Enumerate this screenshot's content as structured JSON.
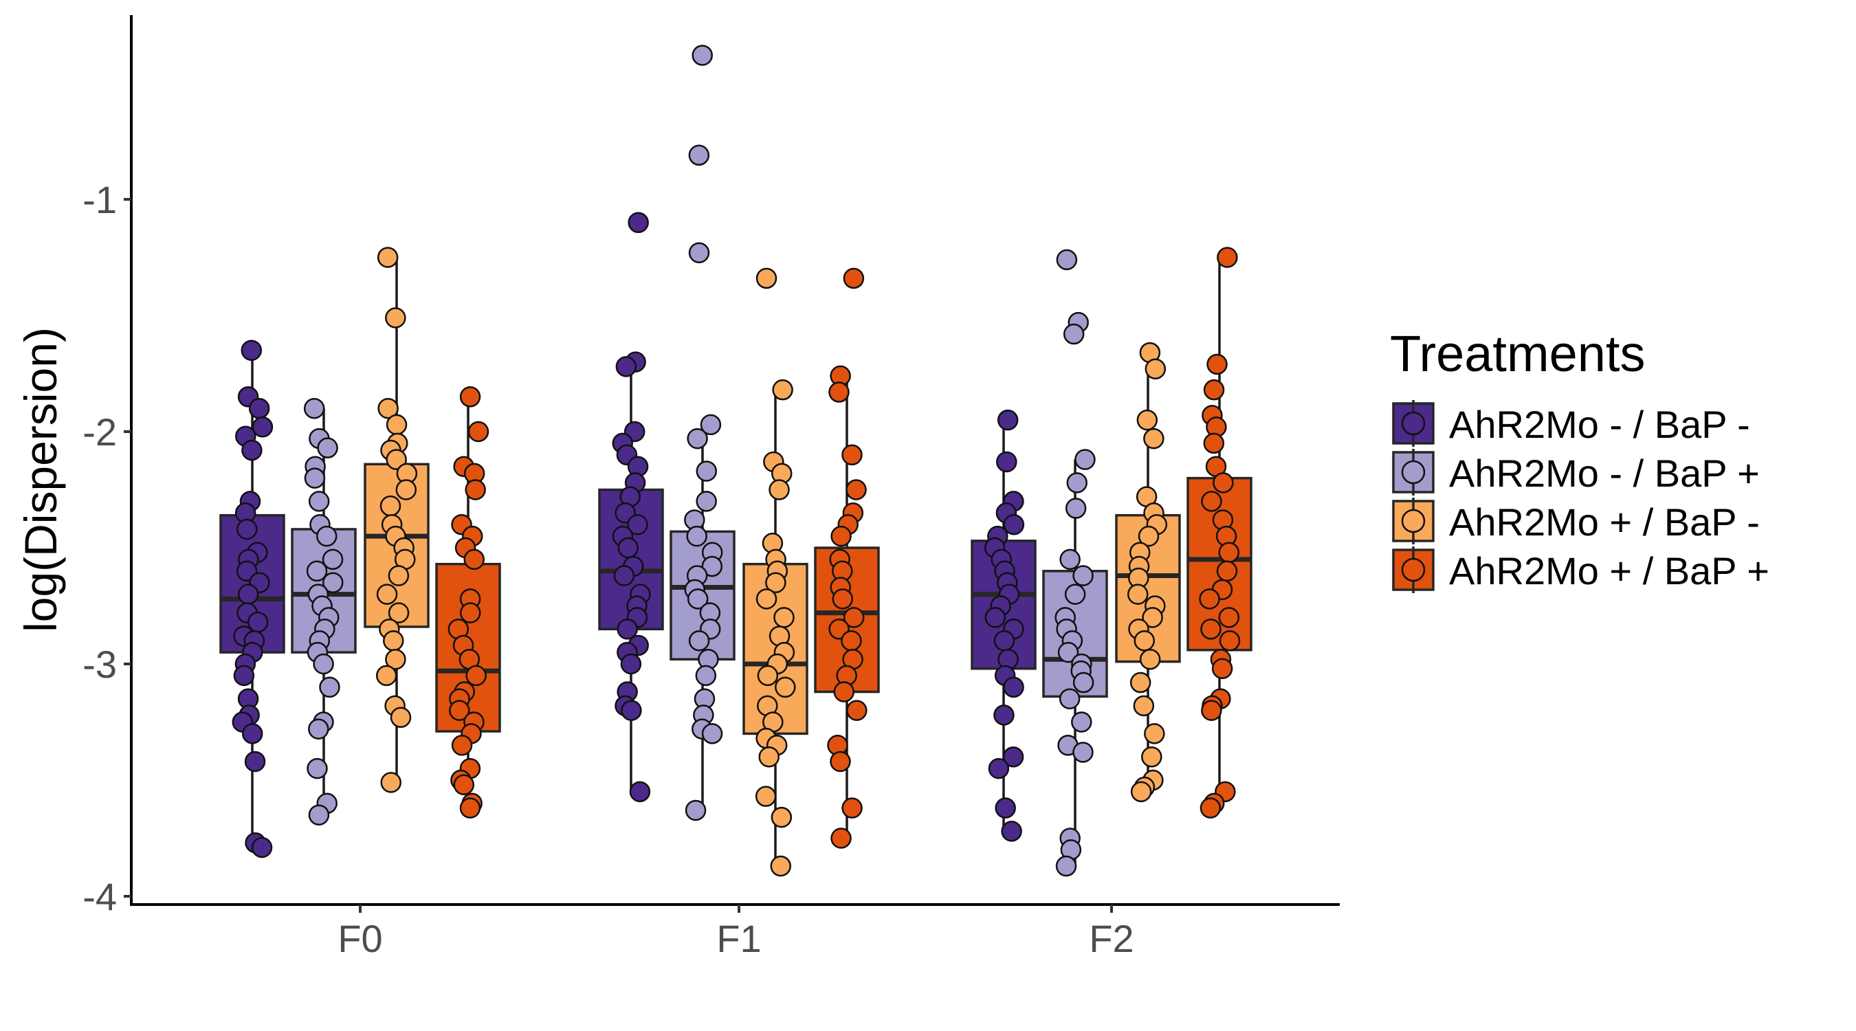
{
  "chart_data": {
    "type": "box",
    "title": "",
    "xlabel": "",
    "ylabel": "log(Dispersion)",
    "ylim": [
      -4.05,
      -0.25
    ],
    "yticks": [
      -4,
      -3,
      -2,
      -1
    ],
    "ytick_labels": [
      "-4",
      "-3",
      "-2",
      "-1"
    ],
    "categories": [
      "F0",
      "F1",
      "F2"
    ],
    "grid": false,
    "legend": {
      "title": "Treatments",
      "placement": "right"
    },
    "series": [
      {
        "name": "AhR2Mo - / BaP -",
        "color": "#4b2a8a",
        "boxes": [
          {
            "category": "F0",
            "q1": -2.95,
            "median": -2.72,
            "q3": -2.36,
            "whisker_low": -3.78,
            "whisker_high": -1.65,
            "points": [
              -1.65,
              -1.85,
              -1.9,
              -1.98,
              -2.02,
              -2.08,
              -2.3,
              -2.35,
              -2.42,
              -2.52,
              -2.55,
              -2.6,
              -2.65,
              -2.7,
              -2.78,
              -2.82,
              -2.88,
              -2.9,
              -2.95,
              -3.0,
              -3.05,
              -3.15,
              -3.22,
              -3.25,
              -3.3,
              -3.42,
              -3.77,
              -3.79
            ]
          },
          {
            "category": "F1",
            "q1": -2.85,
            "median": -2.6,
            "q3": -2.25,
            "whisker_low": -3.55,
            "whisker_high": -1.7,
            "points": [
              -1.1,
              -1.7,
              -1.72,
              -2.0,
              -2.05,
              -2.1,
              -2.15,
              -2.22,
              -2.28,
              -2.35,
              -2.4,
              -2.45,
              -2.5,
              -2.58,
              -2.62,
              -2.7,
              -2.75,
              -2.8,
              -2.85,
              -2.92,
              -2.95,
              -3.0,
              -3.12,
              -3.18,
              -3.2,
              -3.55
            ]
          },
          {
            "category": "F2",
            "q1": -3.02,
            "median": -2.7,
            "q3": -2.47,
            "whisker_low": -3.72,
            "whisker_high": -1.95,
            "points": [
              -1.95,
              -2.13,
              -2.3,
              -2.35,
              -2.4,
              -2.45,
              -2.5,
              -2.55,
              -2.6,
              -2.65,
              -2.7,
              -2.75,
              -2.8,
              -2.85,
              -2.9,
              -2.98,
              -3.05,
              -3.1,
              -3.22,
              -3.4,
              -3.45,
              -3.62,
              -3.72
            ]
          }
        ]
      },
      {
        "name": "AhR2Mo - / BaP +",
        "color": "#a29dcc",
        "boxes": [
          {
            "category": "F0",
            "q1": -2.95,
            "median": -2.7,
            "q3": -2.42,
            "whisker_low": -3.65,
            "whisker_high": -1.9,
            "points": [
              -1.9,
              -2.03,
              -2.07,
              -2.15,
              -2.2,
              -2.3,
              -2.4,
              -2.45,
              -2.55,
              -2.6,
              -2.65,
              -2.7,
              -2.75,
              -2.8,
              -2.85,
              -2.9,
              -2.95,
              -3.0,
              -3.1,
              -3.25,
              -3.28,
              -3.45,
              -3.6,
              -3.65
            ]
          },
          {
            "category": "F1",
            "q1": -2.98,
            "median": -2.67,
            "q3": -2.43,
            "whisker_low": -3.63,
            "whisker_high": -1.97,
            "points": [
              -0.38,
              -0.81,
              -1.23,
              -1.97,
              -2.03,
              -2.17,
              -2.3,
              -2.38,
              -2.45,
              -2.52,
              -2.58,
              -2.62,
              -2.68,
              -2.72,
              -2.78,
              -2.85,
              -2.9,
              -2.98,
              -3.05,
              -3.15,
              -3.22,
              -3.28,
              -3.3,
              -3.63
            ]
          },
          {
            "category": "F2",
            "q1": -3.14,
            "median": -2.98,
            "q3": -2.6,
            "whisker_low": -3.87,
            "whisker_high": -2.12,
            "points": [
              -1.26,
              -1.53,
              -1.58,
              -2.12,
              -2.22,
              -2.33,
              -2.55,
              -2.62,
              -2.7,
              -2.8,
              -2.85,
              -2.9,
              -2.95,
              -3.0,
              -3.03,
              -3.08,
              -3.15,
              -3.25,
              -3.35,
              -3.38,
              -3.75,
              -3.8,
              -3.87
            ]
          }
        ]
      },
      {
        "name": "AhR2Mo + / BaP -",
        "color": "#f9a95a",
        "boxes": [
          {
            "category": "F0",
            "q1": -2.84,
            "median": -2.45,
            "q3": -2.14,
            "whisker_low": -3.51,
            "whisker_high": -1.25,
            "points": [
              -1.25,
              -1.51,
              -1.9,
              -1.97,
              -2.05,
              -2.08,
              -2.12,
              -2.18,
              -2.25,
              -2.32,
              -2.4,
              -2.45,
              -2.5,
              -2.55,
              -2.62,
              -2.7,
              -2.78,
              -2.85,
              -2.9,
              -2.98,
              -3.05,
              -3.18,
              -3.23,
              -3.51
            ]
          },
          {
            "category": "F1",
            "q1": -3.3,
            "median": -3.0,
            "q3": -2.57,
            "whisker_low": -3.87,
            "whisker_high": -1.82,
            "points": [
              -1.34,
              -1.82,
              -2.13,
              -2.18,
              -2.25,
              -2.48,
              -2.55,
              -2.6,
              -2.65,
              -2.72,
              -2.8,
              -2.88,
              -2.95,
              -3.0,
              -3.05,
              -3.1,
              -3.18,
              -3.25,
              -3.32,
              -3.35,
              -3.4,
              -3.57,
              -3.66,
              -3.87
            ]
          },
          {
            "category": "F2",
            "q1": -2.99,
            "median": -2.62,
            "q3": -2.36,
            "whisker_low": -3.55,
            "whisker_high": -1.66,
            "points": [
              -1.66,
              -1.73,
              -1.95,
              -2.03,
              -2.28,
              -2.35,
              -2.4,
              -2.45,
              -2.52,
              -2.58,
              -2.63,
              -2.7,
              -2.75,
              -2.8,
              -2.85,
              -2.9,
              -2.98,
              -3.08,
              -3.18,
              -3.3,
              -3.4,
              -3.5,
              -3.53,
              -3.55
            ]
          }
        ]
      },
      {
        "name": "AhR2Mo + / BaP +",
        "color": "#e1520f",
        "boxes": [
          {
            "category": "F0",
            "q1": -3.29,
            "median": -3.03,
            "q3": -2.57,
            "whisker_low": -3.62,
            "whisker_high": -1.85,
            "points": [
              -1.85,
              -2.0,
              -2.15,
              -2.18,
              -2.25,
              -2.4,
              -2.45,
              -2.5,
              -2.55,
              -2.72,
              -2.78,
              -2.85,
              -2.92,
              -2.98,
              -3.05,
              -3.12,
              -3.15,
              -3.2,
              -3.25,
              -3.3,
              -3.35,
              -3.45,
              -3.5,
              -3.52,
              -3.6,
              -3.62
            ]
          },
          {
            "category": "F1",
            "q1": -3.12,
            "median": -2.78,
            "q3": -2.5,
            "whisker_low": -3.75,
            "whisker_high": -1.76,
            "points": [
              -1.34,
              -1.76,
              -1.83,
              -2.1,
              -2.25,
              -2.35,
              -2.4,
              -2.45,
              -2.55,
              -2.6,
              -2.67,
              -2.72,
              -2.8,
              -2.85,
              -2.9,
              -2.98,
              -3.05,
              -3.12,
              -3.2,
              -3.35,
              -3.42,
              -3.62,
              -3.75
            ]
          },
          {
            "category": "F2",
            "q1": -2.94,
            "median": -2.55,
            "q3": -2.2,
            "whisker_low": -3.62,
            "whisker_high": -1.25,
            "points": [
              -1.25,
              -1.71,
              -1.82,
              -1.93,
              -1.98,
              -2.05,
              -2.15,
              -2.22,
              -2.3,
              -2.38,
              -2.45,
              -2.52,
              -2.6,
              -2.68,
              -2.72,
              -2.8,
              -2.85,
              -2.9,
              -2.98,
              -3.02,
              -3.15,
              -3.18,
              -3.2,
              -3.55,
              -3.6,
              -3.62
            ]
          }
        ]
      }
    ]
  }
}
